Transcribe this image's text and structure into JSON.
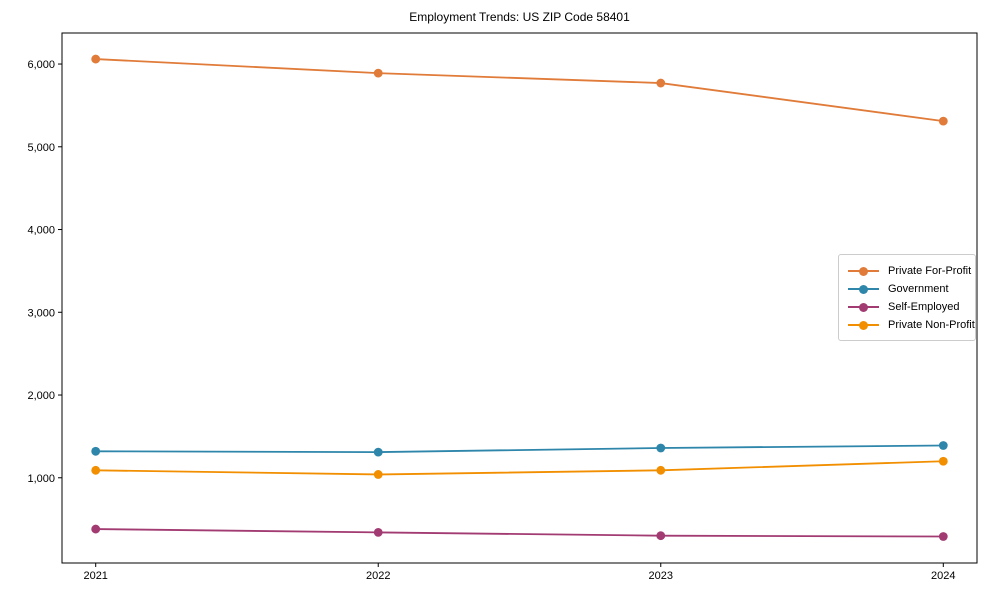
{
  "chart_data": {
    "type": "line",
    "title": "Employment Trends: US ZIP Code 58401",
    "xlabel": "",
    "ylabel": "",
    "x": [
      2021,
      2022,
      2023,
      2024
    ],
    "x_tick_labels": [
      "2021",
      "2022",
      "2023",
      "2024"
    ],
    "y_ticks": [
      1000,
      2000,
      3000,
      4000,
      5000,
      6000
    ],
    "y_tick_labels": [
      "1,000",
      "2,000",
      "3,000",
      "4,000",
      "5,000",
      "6,000"
    ],
    "ylim": [
      -30,
      6375
    ],
    "grid": false,
    "legend_position": "inside-right",
    "series": [
      {
        "name": "Private For-Profit",
        "color": "#E07B39",
        "values": [
          6060,
          5890,
          5770,
          5310
        ]
      },
      {
        "name": "Government",
        "color": "#2E86AB",
        "values": [
          1320,
          1310,
          1360,
          1390
        ]
      },
      {
        "name": "Self-Employed",
        "color": "#A23B72",
        "values": [
          380,
          340,
          300,
          290
        ]
      },
      {
        "name": "Private Non-Profit",
        "color": "#F18F01",
        "values": [
          1090,
          1040,
          1090,
          1200
        ]
      }
    ]
  }
}
